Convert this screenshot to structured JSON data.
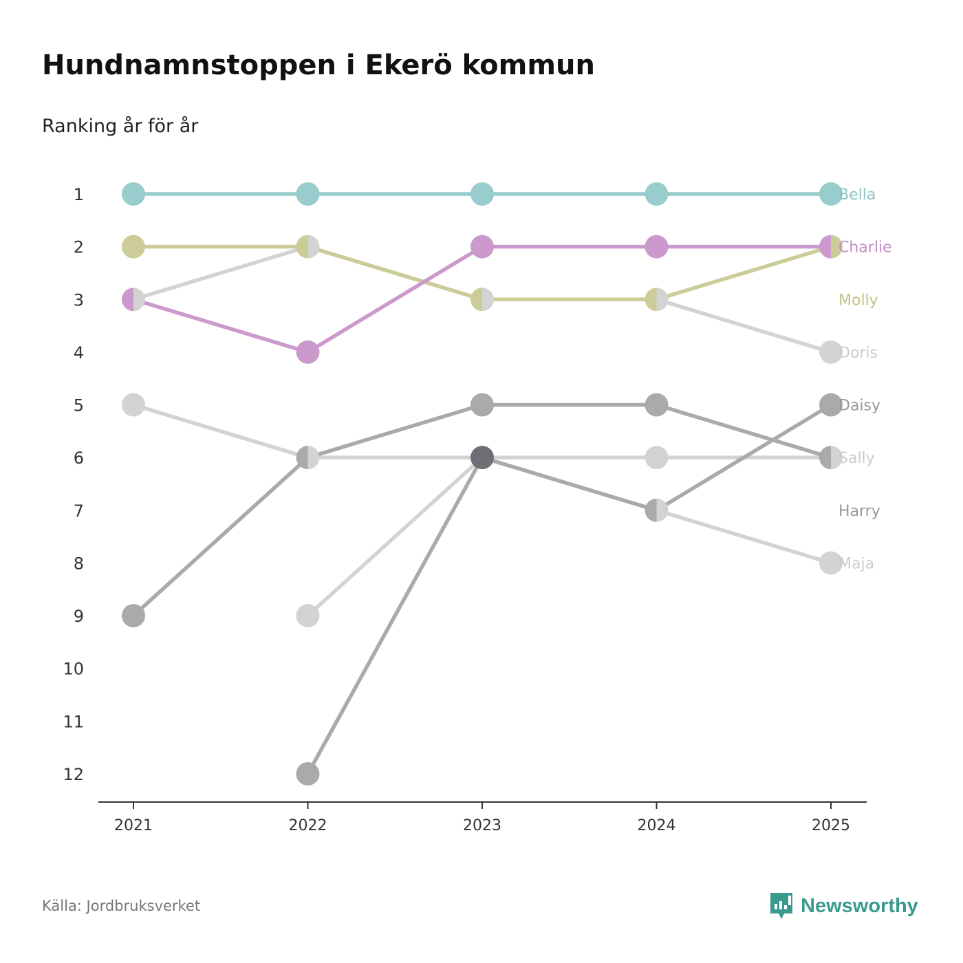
{
  "title": "Hundnamnstoppen i Ekerö kommun",
  "subtitle": "Ranking år för år",
  "source": "Källa: Jordbruksverket",
  "logo": "Newsworthy",
  "chart_data": {
    "type": "line",
    "subtype": "bump",
    "title": "Hundnamnstoppen i Ekerö kommun",
    "subtitle": "Ranking år för år",
    "x": [
      "2021",
      "2022",
      "2023",
      "2024",
      "2025"
    ],
    "ylim": [
      1,
      12
    ],
    "y_reversed": true,
    "yticks": [
      "1",
      "2",
      "3",
      "4",
      "5",
      "6",
      "7",
      "8",
      "9",
      "10",
      "11",
      "12"
    ],
    "series": [
      {
        "name": "Sally",
        "color": "#d3d3d3",
        "values": [
          5,
          6,
          6,
          6,
          6
        ],
        "label_rank": 6
      },
      {
        "name": "Maja",
        "color": "#d3d3d3",
        "values": [
          null,
          9,
          6,
          7,
          8
        ],
        "label_rank": 8
      },
      {
        "name": "Doris",
        "color": "#d3d3d3",
        "values": [
          3,
          2,
          3,
          3,
          4
        ],
        "label_rank": 4
      },
      {
        "name": "Harry",
        "color": "#aaaaaa",
        "values": [
          9,
          6,
          5,
          5,
          6
        ],
        "label_rank": 7
      },
      {
        "name": "Daisy",
        "color": "#aaaaaa",
        "values": [
          null,
          12,
          6,
          7,
          5
        ],
        "label_rank": 5
      },
      {
        "name": "Molly",
        "color": "#cccc99",
        "values": [
          2,
          2,
          3,
          3,
          2
        ],
        "label_rank": 3
      },
      {
        "name": "Charlie",
        "color": "#cc99cc",
        "values": [
          3,
          4,
          2,
          2,
          2
        ],
        "label_rank": 2
      },
      {
        "name": "Bella",
        "color": "#99cccc",
        "values": [
          1,
          1,
          1,
          1,
          1
        ],
        "label_rank": 1
      }
    ],
    "label_colors": {
      "Sally": "#cccccc",
      "Maja": "#cccccc",
      "Doris": "#cccccc",
      "Harry": "#999999",
      "Daisy": "#999999",
      "Molly": "#c2c28a",
      "Charlie": "#c58ec5",
      "Bella": "#8fc4c4"
    }
  }
}
